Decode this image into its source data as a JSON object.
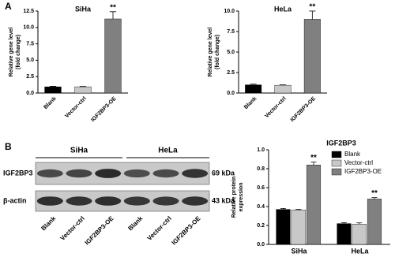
{
  "panels": [
    "A",
    "B"
  ],
  "blot": {
    "groups": [
      "SiHa",
      "HeLa"
    ],
    "rows": [
      {
        "name": "IGF2BP3",
        "size": "69 kDa"
      },
      {
        "name": "β-actin",
        "size": "43 kDa"
      }
    ],
    "lanes": [
      "Blank",
      "Vector-ctrl",
      "IGF2BP3-OE",
      "Blank",
      "Vector-ctrl",
      "IGF2BP3-OE"
    ]
  },
  "chart_data": [
    {
      "type": "bar",
      "title": "SiHa",
      "ylabel": [
        "Relative gene level",
        "(fold change)"
      ],
      "categories": [
        "Blank",
        "Vector-ctrl",
        "IGF2BP3-OE"
      ],
      "values": [
        0.95,
        0.95,
        11.3
      ],
      "errors": [
        0.08,
        0.05,
        1.1
      ],
      "colors": [
        "#000000",
        "#c8c8c8",
        "#808080"
      ],
      "annotation": "**",
      "ylim": [
        0,
        12.5
      ],
      "yticks": [
        {
          "value": 0,
          "label": "0.0"
        },
        2.5,
        {
          "value": 5,
          "label": "5.0"
        },
        7.5,
        {
          "value": 10,
          "label": "10.0"
        },
        12.5
      ]
    },
    {
      "type": "bar",
      "title": "HeLa",
      "ylabel": [
        "Relative gene level",
        "(fold change)"
      ],
      "categories": [
        "Blank",
        "Vector-ctrl",
        "IGF2BP3-OE"
      ],
      "values": [
        1.0,
        0.95,
        9.0
      ],
      "errors": [
        0.08,
        0.05,
        1.0
      ],
      "colors": [
        "#000000",
        "#c8c8c8",
        "#808080"
      ],
      "annotation": "**",
      "ylim": [
        0,
        10
      ],
      "yticks": [
        {
          "value": 0,
          "label": "0.0"
        },
        2.5,
        {
          "value": 5,
          "label": "5.0"
        },
        7.5,
        {
          "value": 10,
          "label": "10.0"
        }
      ]
    },
    {
      "type": "grouped-bar",
      "title": "IGF2BP3",
      "ylabel": [
        "Relative protein",
        "expression"
      ],
      "categories": [
        "SiHa",
        "HeLa"
      ],
      "series": [
        {
          "name": "Blank",
          "color": "#000000",
          "values": [
            0.37,
            0.22
          ],
          "errors": [
            0.01,
            0.01
          ]
        },
        {
          "name": "Vector-ctrl",
          "color": "#c8c8c8",
          "values": [
            0.365,
            0.215
          ],
          "errors": [
            0.006,
            0.012
          ]
        },
        {
          "name": "IGF2BP3-OE",
          "color": "#808080",
          "values": [
            0.84,
            0.48
          ],
          "errors": [
            0.03,
            0.015
          ],
          "annotation": "**"
        }
      ],
      "ylim": [
        0,
        1.0
      ],
      "yticks": [
        {
          "value": 0,
          "label": "0.0"
        },
        0.2,
        0.4,
        0.6,
        0.8,
        {
          "value": 1.0,
          "label": "1.0"
        }
      ]
    }
  ]
}
